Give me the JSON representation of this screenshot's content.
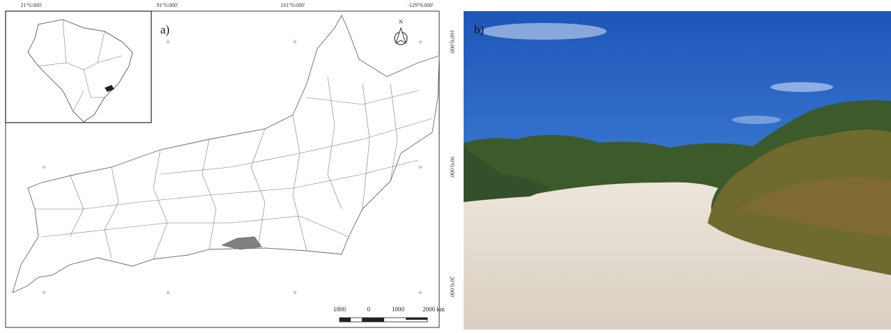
{
  "panel_a": {
    "label": "a)",
    "north": "N",
    "top_coords": [
      "21°0.000'",
      "91°0.000'",
      "161°0.000'",
      "-129°0.000'"
    ],
    "side_coords": [
      "160°0.000'",
      "90°0.000'",
      "20°0.000'"
    ],
    "scale_labels": [
      "1000",
      "0",
      "1000",
      "2000 km"
    ]
  },
  "panel_b": {
    "label": "b)"
  }
}
